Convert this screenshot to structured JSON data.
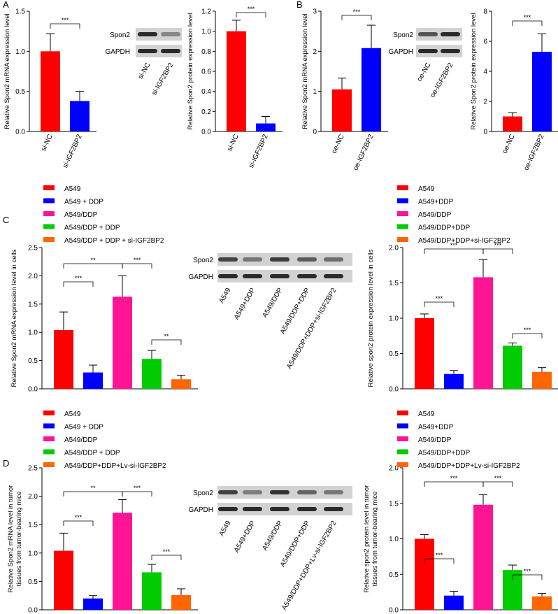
{
  "colors": {
    "red": "#ff0000",
    "blue": "#0000ff",
    "pink": "#ff1493",
    "green": "#00cc00",
    "orange": "#ff6600",
    "blot_bg": "#d2d2d2",
    "band": "#2a2a2a"
  },
  "panels": {
    "A": {
      "label": "A"
    },
    "B": {
      "label": "B"
    },
    "C": {
      "label": "C"
    },
    "D": {
      "label": "D"
    }
  },
  "blots": [
    {
      "id": "A",
      "rows": [
        "Spon2",
        "GAPDH"
      ],
      "lanes": [
        "si-NC",
        "si-IGF2BP2"
      ]
    },
    {
      "id": "B",
      "rows": [
        "Spon2",
        "GAPDH"
      ],
      "lanes": [
        "oe-NC",
        "oe-IGF2BP2"
      ]
    },
    {
      "id": "C",
      "rows": [
        "Spon2",
        "GAPDH"
      ],
      "lanes": [
        "A549",
        "A549+DDP",
        "A549/DDP",
        "A549/DDP+DDP",
        "A549/DDP+DDP+si-IGF2BP2"
      ]
    },
    {
      "id": "D",
      "rows": [
        "Spon2",
        "GAPDH"
      ],
      "lanes": [
        "A549",
        "A549+DDP",
        "A549/DDP",
        "A549/DDP+DDP",
        "A549/DDP+DDP+Lv-si-IGF2BP2"
      ]
    }
  ],
  "legends": [
    {
      "id": "C-left",
      "items": [
        "A549",
        "A549 + DDP",
        "A549/DDP",
        "A549/DDP + DDP",
        "A549/DDP + DDP + si-IGF2BP2"
      ]
    },
    {
      "id": "C-right",
      "items": [
        "A549",
        "A549+DDP",
        "A549/DDP",
        "A549/DDP+DDP",
        "A549/DDP+DDP+si-IGF2BP2"
      ]
    },
    {
      "id": "D-left",
      "items": [
        "A549",
        "A549 + DDP",
        "A549/DDP",
        "A549/DDP + DDP",
        "A549/DDP+DDP+Lv-si-IGF2BP2"
      ]
    },
    {
      "id": "D-right",
      "items": [
        "A549",
        "A549+DDP",
        "A549/DDP",
        "A549/DDP+DDP",
        "A549/DDP+DDP+Lv-si-IGF2BP2"
      ]
    }
  ],
  "chart_data": [
    {
      "id": "A1",
      "type": "bar",
      "categories": [
        "si-NC",
        "si-IGF2BP2"
      ],
      "values": [
        1.0,
        0.38
      ],
      "errors": [
        0.22,
        0.12
      ],
      "ylabel": "Relative Spon2 mRNA expression level",
      "ylim": [
        0,
        1.5
      ],
      "yticks": [
        "0.0",
        "0.5",
        "1.0",
        "1.5"
      ],
      "significance": [
        {
          "from": 0,
          "to": 1,
          "label": "***"
        }
      ]
    },
    {
      "id": "A2",
      "type": "bar",
      "categories": [
        "si-NC",
        "si-IGF2BP2"
      ],
      "values": [
        1.0,
        0.08
      ],
      "errors": [
        0.11,
        0.07
      ],
      "ylabel": "Relative Spon2 protein expression level",
      "ylim": [
        0,
        1.2
      ],
      "yticks": [
        "0.0",
        "0.2",
        "0.4",
        "0.6",
        "0.8",
        "1.0",
        "1.2"
      ],
      "significance": [
        {
          "from": 0,
          "to": 1,
          "label": "***"
        }
      ]
    },
    {
      "id": "B1",
      "type": "bar",
      "categories": [
        "oe-NC",
        "oe-IGF2BP2"
      ],
      "values": [
        1.05,
        2.08
      ],
      "errors": [
        0.28,
        0.57
      ],
      "ylabel": "Relative Spon2 mRNA expression level",
      "ylim": [
        0,
        3
      ],
      "yticks": [
        "0",
        "1",
        "2",
        "3"
      ],
      "significance": [
        {
          "from": 0,
          "to": 1,
          "label": "***"
        }
      ]
    },
    {
      "id": "B2",
      "type": "bar",
      "categories": [
        "oe-NC",
        "oe-IGF2BP2"
      ],
      "values": [
        1.0,
        5.3
      ],
      "errors": [
        0.25,
        1.2
      ],
      "ylabel": "Relative Spon2 protein expression level",
      "ylim": [
        0,
        8
      ],
      "yticks": [
        "0",
        "2",
        "4",
        "6",
        "8"
      ],
      "significance": [
        {
          "from": 0,
          "to": 1,
          "label": "***"
        }
      ]
    },
    {
      "id": "C1",
      "type": "bar",
      "categories": [
        "A549",
        "A549 + DDP",
        "A549/DDP",
        "A549/DDP + DDP",
        "A549/DDP + DDP + si-IGF2BP2"
      ],
      "values": [
        1.04,
        0.29,
        1.63,
        0.53,
        0.17
      ],
      "errors": [
        0.32,
        0.13,
        0.37,
        0.15,
        0.07
      ],
      "ylabel": "Relative Spon2 mRNA expression level in cells",
      "ylim": [
        0,
        2.5
      ],
      "yticks": [
        "0.0",
        "0.5",
        "1.0",
        "1.5",
        "2.0",
        "2.5"
      ],
      "significance": [
        {
          "from": 0,
          "to": 1,
          "label": "***"
        },
        {
          "from": 0,
          "to": 2,
          "label": "**"
        },
        {
          "from": 2,
          "to": 3,
          "label": "***"
        },
        {
          "from": 3,
          "to": 4,
          "label": "**"
        }
      ]
    },
    {
      "id": "C2",
      "type": "bar",
      "categories": [
        "A549",
        "A549+DDP",
        "A549/DDP",
        "A549/DDP+DDP",
        "A549/DDP+DDP+si-IGF2BP2"
      ],
      "values": [
        1.0,
        0.21,
        1.58,
        0.61,
        0.24
      ],
      "errors": [
        0.06,
        0.05,
        0.25,
        0.04,
        0.06
      ],
      "ylabel": "Relative spon2 protein expression level in cells",
      "ylim": [
        0,
        2.0
      ],
      "yticks": [
        "0.0",
        "0.5",
        "1.0",
        "1.5",
        "2.0"
      ],
      "significance": [
        {
          "from": 0,
          "to": 1,
          "label": "***"
        },
        {
          "from": 0,
          "to": 2,
          "label": "***"
        },
        {
          "from": 2,
          "to": 3,
          "label": "***"
        },
        {
          "from": 3,
          "to": 4,
          "label": "***"
        }
      ]
    },
    {
      "id": "D1",
      "type": "bar",
      "categories": [
        "A549",
        "A549 + DDP",
        "A549/DDP",
        "A549/DDP + DDP",
        "A549/DDP+DDP+Lv-si-IGF2BP2"
      ],
      "values": [
        1.04,
        0.2,
        1.71,
        0.66,
        0.26
      ],
      "errors": [
        0.31,
        0.05,
        0.23,
        0.14,
        0.11
      ],
      "ylabel": "Relative Spon2 mRNA level in tumor tissues from tumor-bearing mice",
      "ylim": [
        0,
        2.5
      ],
      "yticks": [
        "0.0",
        "0.5",
        "1.0",
        "1.5",
        "2.0",
        "2.5"
      ],
      "significance": [
        {
          "from": 0,
          "to": 1,
          "label": "***"
        },
        {
          "from": 0,
          "to": 2,
          "label": "**"
        },
        {
          "from": 2,
          "to": 3,
          "label": "***"
        },
        {
          "from": 3,
          "to": 4,
          "label": "***"
        }
      ]
    },
    {
      "id": "D2",
      "type": "bar",
      "categories": [
        "A549",
        "A549+DDP",
        "A549/DDP",
        "A549/DDP+DDP",
        "A549/DDP+DDP+Lv-si-IGF2BP2"
      ],
      "values": [
        1.0,
        0.2,
        1.48,
        0.56,
        0.19
      ],
      "errors": [
        0.06,
        0.06,
        0.14,
        0.07,
        0.04
      ],
      "ylabel": "Relative spon2 protein level in tumor tissues from tumor-bearing mice",
      "ylim": [
        0,
        2.0
      ],
      "yticks": [
        "0.0",
        "0.5",
        "1.0",
        "1.5",
        "2.0"
      ],
      "significance": [
        {
          "from": 0,
          "to": 1,
          "label": "***"
        },
        {
          "from": 0,
          "to": 2,
          "label": "***"
        },
        {
          "from": 2,
          "to": 3,
          "label": "***"
        },
        {
          "from": 3,
          "to": 4,
          "label": "***"
        }
      ]
    }
  ]
}
